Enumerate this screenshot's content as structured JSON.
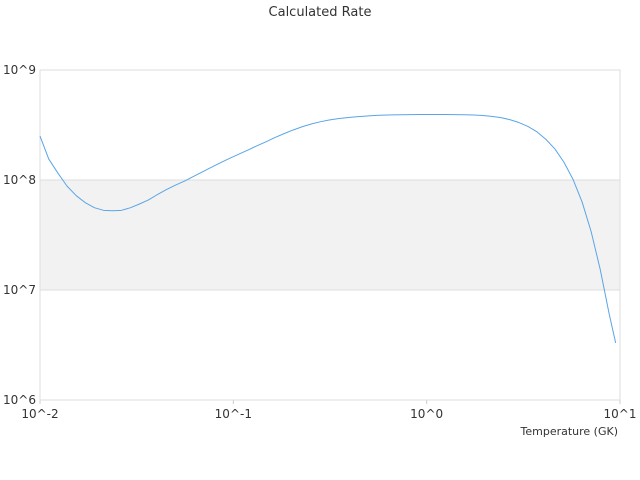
{
  "chart_data": {
    "type": "line",
    "title": "Calculated Rate",
    "xlabel": "Temperature (GK)",
    "ylabel": "",
    "x_scale": "log",
    "y_scale": "log",
    "xlim": [
      0.01,
      10
    ],
    "ylim": [
      1000000,
      1000000000
    ],
    "x_tick_labels": [
      "10^-2",
      "10^-1",
      "10^0",
      "10^1"
    ],
    "y_tick_labels": [
      "10^6",
      "10^7",
      "10^8",
      "10^9"
    ],
    "grid": true,
    "legend": "none",
    "series": [
      {
        "color": "#5aa5e6",
        "x": [
          0.01,
          0.0111,
          0.0124,
          0.0138,
          0.0154,
          0.0172,
          0.0191,
          0.0213,
          0.0237,
          0.0264,
          0.0294,
          0.0327,
          0.0365,
          0.0406,
          0.0452,
          0.0503,
          0.0561,
          0.0624,
          0.0695,
          0.0774,
          0.0862,
          0.096,
          0.107,
          0.119,
          0.132,
          0.148,
          0.164,
          0.183,
          0.204,
          0.227,
          0.253,
          0.281,
          0.313,
          0.349,
          0.389,
          0.433,
          0.482,
          0.536,
          0.597,
          0.665,
          0.741,
          0.825,
          0.918,
          1.02,
          1.14,
          1.27,
          1.41,
          1.57,
          1.75,
          1.95,
          2.17,
          2.42,
          2.69,
          3.0,
          3.34,
          3.72,
          4.14,
          4.61,
          5.13,
          5.72,
          6.37,
          7.09,
          7.9,
          8.8,
          9.5
        ],
        "y": [
          251000000,
          155000000,
          115000000,
          88000000,
          72000000,
          62000000,
          56000000,
          53000000,
          52500000,
          53000000,
          56000000,
          60500000,
          66000000,
          74000000,
          82000000,
          90000000,
          98000000,
          108000000,
          119000000,
          131000000,
          144000000,
          158000000,
          172000000,
          187000000,
          204000000,
          223000000,
          243000000,
          264000000,
          285000000,
          305000000,
          323000000,
          338000000,
          351000000,
          361000000,
          369000000,
          376000000,
          381000000,
          386000000,
          389000000,
          391000000,
          392000000,
          393000000,
          393500000,
          393500000,
          393500000,
          393500000,
          393000000,
          392000000,
          390000000,
          386000000,
          379000000,
          369000000,
          354000000,
          333000000,
          307000000,
          274000000,
          234000000,
          191000000,
          145000000,
          101000000,
          63000000,
          34000000,
          15400000,
          6000000,
          3300000
        ]
      }
    ]
  }
}
